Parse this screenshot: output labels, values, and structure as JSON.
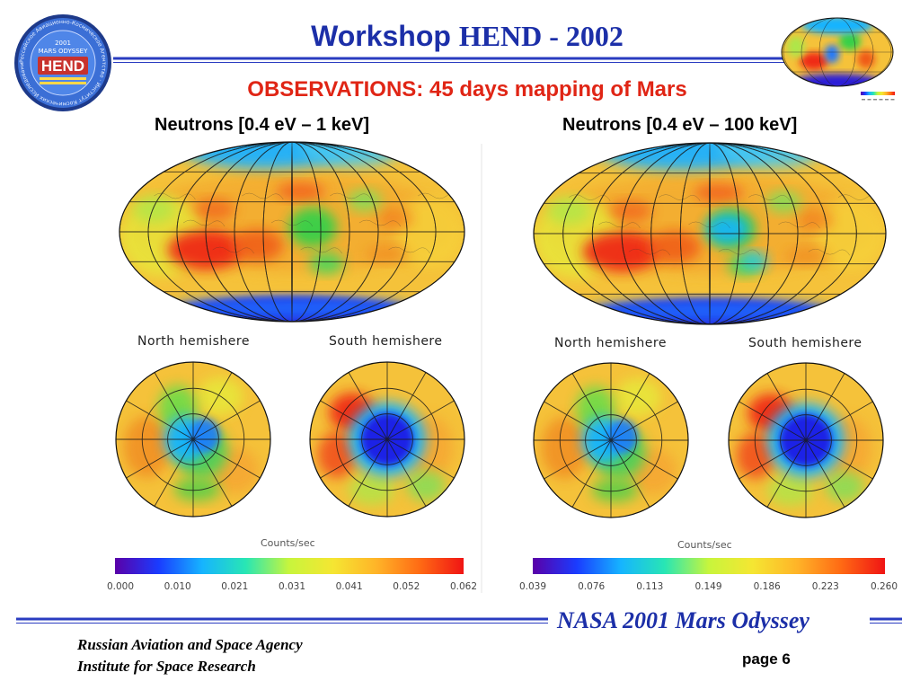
{
  "header": {
    "title_part1": "Workshop",
    "title_part2": "HEND - 2002",
    "subtitle": "OBSERVATIONS: 45 days mapping of Mars"
  },
  "logo": {
    "ring_text": "Российское Авиационно-Космическое Агентство · Институт Космических Исследований РАН",
    "line1": "2001",
    "line2": "MARS ODYSSEY",
    "emblem": "HEND"
  },
  "panels": [
    {
      "title": "Neutrons [0.4 eV – 1 keV]",
      "north_label": "North  hemishere",
      "south_label": "South  hemishere",
      "scale_label": "Counts/sec",
      "ticks": [
        "0.000",
        "0.010",
        "0.021",
        "0.031",
        "0.041",
        "0.052",
        "0.062"
      ]
    },
    {
      "title": "Neutrons [0.4 eV – 100 keV]",
      "north_label": "North  hemishere",
      "south_label": "South  hemishere",
      "scale_label": "Counts/sec",
      "ticks": [
        "0.039",
        "0.076",
        "0.113",
        "0.149",
        "0.186",
        "0.223",
        "0.260"
      ]
    }
  ],
  "footer": {
    "mission": "NASA 2001 Mars Odyssey",
    "agency_line1": "Russian Aviation and Space Agency",
    "agency_line2": "Institute for Space Research",
    "page": "page 6"
  },
  "colors": {
    "title_blue": "#1c2fa8",
    "subtitle_red": "#e02515",
    "rule_blue": "#2a3cc0",
    "scale": [
      "#5a00a8",
      "#1a3cff",
      "#16b4ff",
      "#28e6b4",
      "#c8f53c",
      "#f5e632",
      "#ffb428",
      "#ff6a14",
      "#f01414"
    ]
  }
}
